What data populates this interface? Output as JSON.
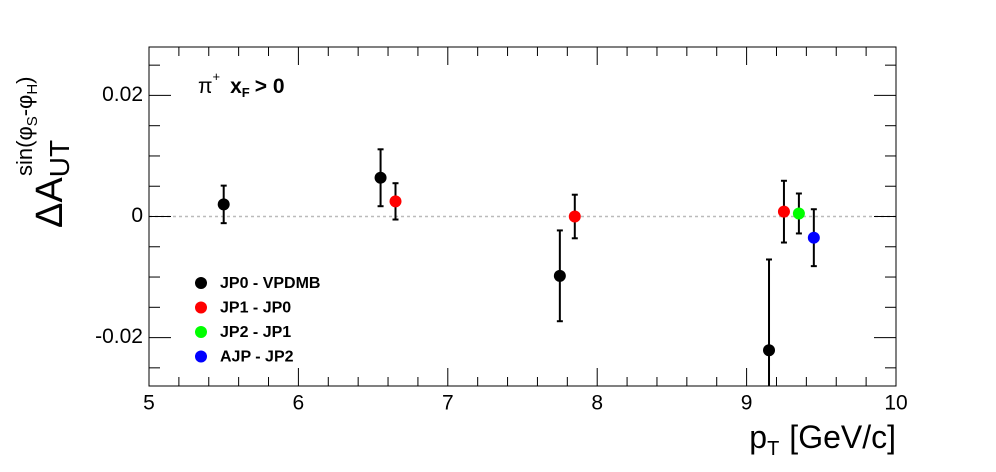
{
  "chart_data": {
    "type": "scatter",
    "annotation": {
      "particle": "π",
      "charge": "+",
      "variable": "x",
      "variable_sub": "F",
      "cut": "> 0"
    },
    "xlabel": {
      "main": "p",
      "sub": "T",
      "unit": "[GeV/c]"
    },
    "ylabel": {
      "main": "ΔA",
      "sub": "UT",
      "sup_parts": [
        "sin(φ",
        "S",
        "-φ",
        "H",
        ")"
      ]
    },
    "xlim": [
      5,
      10
    ],
    "xticks": [
      5,
      6,
      7,
      8,
      9,
      10
    ],
    "xminorticks": [
      5.2,
      5.4,
      5.6,
      5.8,
      6.2,
      6.4,
      6.6,
      6.8,
      7.2,
      7.4,
      7.6,
      7.8,
      8.2,
      8.4,
      8.6,
      8.8,
      9.2,
      9.4,
      9.6,
      9.8
    ],
    "ylim": [
      -0.028,
      0.028
    ],
    "yticks": [
      -0.02,
      0,
      0.02
    ],
    "yminorticks": [
      -0.025,
      -0.015,
      -0.01,
      -0.005,
      0.005,
      0.01,
      0.015,
      0.025
    ],
    "zero_line": true,
    "legend": "lower-left",
    "series": [
      {
        "name": "JP0 - VPDMB",
        "color": "#000000",
        "x": [
          5.5,
          6.55,
          7.75,
          9.15
        ],
        "values": [
          0.002,
          0.0064,
          -0.0098,
          -0.0221
        ],
        "errors": [
          0.0031,
          0.0047,
          0.0075,
          0.015
        ]
      },
      {
        "name": "JP1 - JP0",
        "color": "#ff0000",
        "x": [
          6.65,
          7.85,
          9.25
        ],
        "values": [
          0.0025,
          0,
          0.0008
        ],
        "errors": [
          0.003,
          0.0036,
          0.0051
        ]
      },
      {
        "name": "JP2 - JP1",
        "color": "#00ff00",
        "x": [
          9.35
        ],
        "values": [
          0.0005
        ],
        "errors": [
          0.0033
        ]
      },
      {
        "name": "AJP - JP2",
        "color": "#0000ff",
        "x": [
          9.45
        ],
        "values": [
          -0.0035
        ],
        "errors": [
          0.0047
        ]
      }
    ]
  }
}
